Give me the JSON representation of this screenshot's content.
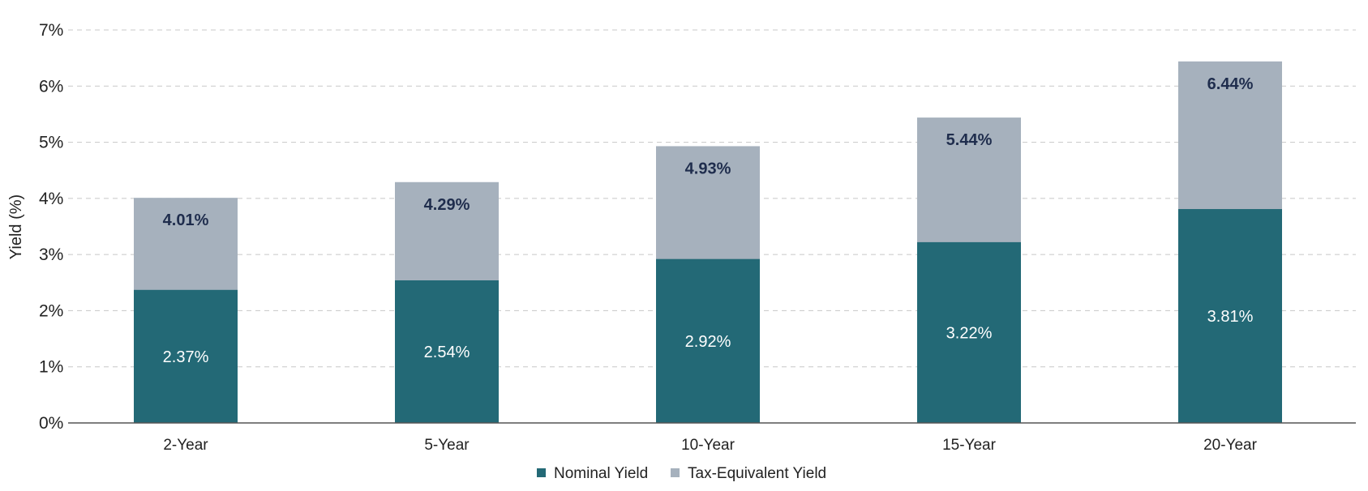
{
  "chart_data": {
    "type": "bar",
    "stacked": false,
    "overlap": true,
    "categories": [
      "2-Year",
      "5-Year",
      "10-Year",
      "15-Year",
      "20-Year"
    ],
    "series": [
      {
        "name": "Nominal Yield",
        "values": [
          2.37,
          2.54,
          2.92,
          3.22,
          3.81
        ],
        "color": "#236976"
      },
      {
        "name": "Tax-Equivalent Yield",
        "values": [
          4.01,
          4.29,
          4.93,
          5.44,
          6.44
        ],
        "color": "#a6b1bd"
      }
    ],
    "data_labels": {
      "Nominal Yield": [
        "2.37%",
        "2.54%",
        "2.92%",
        "3.22%",
        "3.81%"
      ],
      "Tax-Equivalent Yield": [
        "4.01%",
        "4.29%",
        "4.93%",
        "5.44%",
        "6.44%"
      ]
    },
    "ylabel": "Yield (%)",
    "xlabel": "",
    "ylim": [
      0,
      7
    ],
    "yticks": [
      "0%",
      "1%",
      "2%",
      "3%",
      "4%",
      "5%",
      "6%",
      "7%"
    ],
    "grid": true,
    "legend_position": "bottom-center",
    "colors": {
      "label_dark": "#1f2d4d",
      "grid": "#c8c8c8",
      "axis": "#555555"
    }
  }
}
